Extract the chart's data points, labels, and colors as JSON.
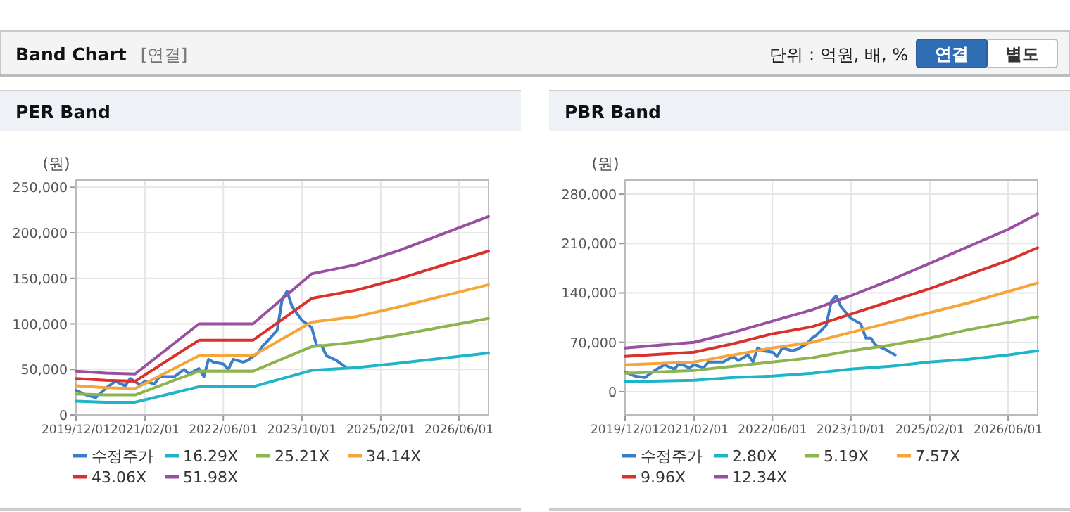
{
  "chart_data": [
    {
      "type": "other",
      "title": "Band Chart",
      "subtitle": "[연결]",
      "annotations": [
        "단위 : 억원, 배, %",
        "연결",
        "별도"
      ]
    },
    {
      "type": "line",
      "title": "PER Band",
      "ylabel": "(원)",
      "grid": true,
      "legend": "bottom",
      "xlim": [
        "2019-12-01",
        "2026-12-01"
      ],
      "xticks": [
        {
          "value": "2019-12-01",
          "label": "2019/12/01"
        },
        {
          "value": "2021-02-01",
          "label": "2021/02/01"
        },
        {
          "value": "2022-06-01",
          "label": "2022/06/01"
        },
        {
          "value": "2023-10-01",
          "label": "2023/10/01"
        },
        {
          "value": "2025-02-01",
          "label": "2025/02/01"
        },
        {
          "value": "2026-06-01",
          "label": "2026/06/01"
        }
      ],
      "ylim": [
        0,
        258000
      ],
      "yticks": [
        0,
        {
          "value": 50000,
          "label": "50,000"
        },
        {
          "value": 100000,
          "label": "100,000"
        },
        {
          "value": 150000,
          "label": "150,000"
        },
        {
          "value": 200000,
          "label": "200,000"
        },
        {
          "value": 250000,
          "label": "250,000"
        }
      ],
      "series": [
        {
          "name": "수정주가",
          "color": "#3a7dc9",
          "x": [
            "2019-12",
            "2020-02",
            "2020-04",
            "2020-06",
            "2020-08",
            "2020-10",
            "2020-11",
            "2021-01",
            "2021-02",
            "2021-04",
            "2021-05",
            "2021-08",
            "2021-10",
            "2021-11",
            "2022-01",
            "2022-02",
            "2022-03",
            "2022-04",
            "2022-06",
            "2022-07",
            "2022-08",
            "2022-10",
            "2022-11",
            "2023-01",
            "2023-02",
            "2023-03",
            "2023-05",
            "2023-06",
            "2023-07",
            "2023-08",
            "2023-10",
            "2023-12",
            "2024-01",
            "2024-02",
            "2024-03",
            "2024-05",
            "2024-07"
          ],
          "values": [
            27000,
            22000,
            19000,
            29000,
            37000,
            32000,
            40000,
            33000,
            37000,
            34000,
            42000,
            42000,
            50000,
            45000,
            51000,
            42000,
            61000,
            58000,
            56000,
            50000,
            61000,
            58000,
            60000,
            68000,
            76000,
            81000,
            93000,
            127000,
            136000,
            119000,
            104000,
            96000,
            76000,
            76000,
            65000,
            60000,
            52000
          ]
        },
        {
          "name": "16.29X",
          "color": "#1fb5c8",
          "x": [
            "2019-12",
            "2020-06",
            "2020-12",
            "2022-01",
            "2022-12",
            "2023-12",
            "2024-09",
            "2025-06",
            "2026-12"
          ],
          "values": [
            15000,
            14000,
            14000,
            31000,
            31000,
            49000,
            52000,
            57000,
            68000
          ]
        },
        {
          "name": "25.21X",
          "color": "#8cb550",
          "x": [
            "2019-12",
            "2020-06",
            "2020-12",
            "2022-01",
            "2022-12",
            "2023-12",
            "2024-09",
            "2025-06",
            "2026-12"
          ],
          "values": [
            23000,
            22000,
            22000,
            48000,
            48000,
            75000,
            80000,
            88000,
            106000
          ]
        },
        {
          "name": "34.14X",
          "color": "#f5a53a",
          "x": [
            "2019-12",
            "2020-06",
            "2020-12",
            "2022-01",
            "2022-12",
            "2023-12",
            "2024-09",
            "2025-06",
            "2026-12"
          ],
          "values": [
            32000,
            30000,
            29000,
            65000,
            65000,
            102000,
            108000,
            119000,
            143000
          ]
        },
        {
          "name": "43.06X",
          "color": "#d9322c",
          "x": [
            "2019-12",
            "2020-06",
            "2020-12",
            "2022-01",
            "2022-12",
            "2023-12",
            "2024-09",
            "2025-06",
            "2026-12"
          ],
          "values": [
            40000,
            38000,
            37000,
            82000,
            82000,
            128000,
            137000,
            150000,
            180000
          ]
        },
        {
          "name": "51.98X",
          "color": "#9a4fa0",
          "x": [
            "2019-12",
            "2020-06",
            "2020-12",
            "2022-01",
            "2022-12",
            "2023-12",
            "2024-09",
            "2025-06",
            "2026-12"
          ],
          "values": [
            48000,
            46000,
            45000,
            100000,
            100000,
            155000,
            165000,
            181000,
            218000
          ]
        }
      ]
    },
    {
      "type": "line",
      "title": "PBR Band",
      "ylabel": "(원)",
      "grid": true,
      "legend": "bottom",
      "xlim": [
        "2019-12-01",
        "2026-12-01"
      ],
      "xticks": [
        {
          "value": "2019-12-01",
          "label": "2019/12/01"
        },
        {
          "value": "2021-02-01",
          "label": "2021/02/01"
        },
        {
          "value": "2022-06-01",
          "label": "2022/06/01"
        },
        {
          "value": "2023-10-01",
          "label": "2023/10/01"
        },
        {
          "value": "2025-02-01",
          "label": "2025/02/01"
        },
        {
          "value": "2026-06-01",
          "label": "2026/06/01"
        }
      ],
      "ylim": [
        -33000,
        300000
      ],
      "yticks": [
        0,
        {
          "value": 70000,
          "label": "70,000"
        },
        {
          "value": 140000,
          "label": "140,000"
        },
        {
          "value": 210000,
          "label": "210,000"
        },
        {
          "value": 280000,
          "label": "280,000"
        }
      ],
      "series": [
        {
          "name": "수정주가",
          "color": "#3a7dc9",
          "x": [
            "2019-12",
            "2020-02",
            "2020-04",
            "2020-06",
            "2020-08",
            "2020-10",
            "2020-11",
            "2021-01",
            "2021-02",
            "2021-04",
            "2021-05",
            "2021-08",
            "2021-10",
            "2021-11",
            "2022-01",
            "2022-02",
            "2022-03",
            "2022-04",
            "2022-06",
            "2022-07",
            "2022-08",
            "2022-10",
            "2022-11",
            "2023-01",
            "2023-02",
            "2023-03",
            "2023-05",
            "2023-06",
            "2023-07",
            "2023-08",
            "2023-10",
            "2023-12",
            "2024-01",
            "2024-02",
            "2024-03",
            "2024-05",
            "2024-07"
          ],
          "values": [
            28000,
            22000,
            20000,
            30000,
            38000,
            32000,
            40000,
            34000,
            38000,
            34000,
            42000,
            42000,
            50000,
            44000,
            52000,
            42000,
            62000,
            58000,
            56000,
            50000,
            62000,
            58000,
            60000,
            68000,
            76000,
            80000,
            94000,
            128000,
            136000,
            120000,
            104000,
            96000,
            76000,
            76000,
            66000,
            60000,
            52000
          ]
        },
        {
          "name": "2.80X",
          "color": "#1fb5c8",
          "x": [
            "2019-12",
            "2021-02",
            "2021-10",
            "2022-06",
            "2023-02",
            "2023-10",
            "2024-06",
            "2025-02",
            "2025-10",
            "2026-06",
            "2026-12"
          ],
          "values": [
            14000,
            16000,
            20000,
            22000,
            26000,
            32000,
            36000,
            42000,
            46000,
            52000,
            58000
          ]
        },
        {
          "name": "5.19X",
          "color": "#8cb550",
          "x": [
            "2019-12",
            "2021-02",
            "2021-10",
            "2022-06",
            "2023-02",
            "2023-10",
            "2024-06",
            "2025-02",
            "2025-10",
            "2026-06",
            "2026-12"
          ],
          "values": [
            26000,
            30000,
            36000,
            42000,
            48000,
            58000,
            66000,
            76000,
            88000,
            98000,
            106000
          ]
        },
        {
          "name": "7.57X",
          "color": "#f5a53a",
          "x": [
            "2019-12",
            "2021-02",
            "2021-10",
            "2022-06",
            "2023-02",
            "2023-10",
            "2024-06",
            "2025-02",
            "2025-10",
            "2026-06",
            "2026-12"
          ],
          "values": [
            38000,
            42000,
            52000,
            62000,
            70000,
            84000,
            98000,
            112000,
            126000,
            142000,
            154000
          ]
        },
        {
          "name": "9.96X",
          "color": "#d9322c",
          "x": [
            "2019-12",
            "2021-02",
            "2021-10",
            "2022-06",
            "2023-02",
            "2023-10",
            "2024-06",
            "2025-02",
            "2025-10",
            "2026-06",
            "2026-12"
          ],
          "values": [
            50000,
            56000,
            68000,
            82000,
            92000,
            110000,
            128000,
            146000,
            166000,
            186000,
            204000
          ]
        },
        {
          "name": "12.34X",
          "color": "#9a4fa0",
          "x": [
            "2019-12",
            "2021-02",
            "2021-10",
            "2022-06",
            "2023-02",
            "2023-10",
            "2024-06",
            "2025-02",
            "2025-10",
            "2026-06",
            "2026-12"
          ],
          "values": [
            62000,
            70000,
            84000,
            100000,
            116000,
            136000,
            158000,
            182000,
            206000,
            230000,
            252000
          ]
        }
      ]
    }
  ]
}
